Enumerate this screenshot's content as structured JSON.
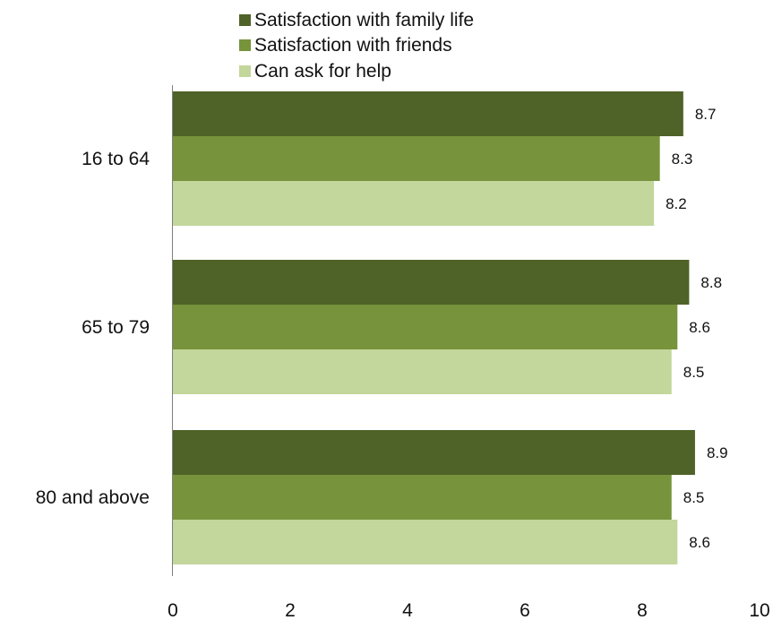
{
  "chart_data": {
    "type": "bar",
    "orientation": "horizontal",
    "categories": [
      "16 to 64",
      "65 to 79",
      "80 and above"
    ],
    "series": [
      {
        "name": "Satisfaction with family life",
        "color": "#4f6228",
        "values": [
          8.7,
          8.8,
          8.9
        ]
      },
      {
        "name": "Satisfaction with friends",
        "color": "#77933c",
        "values": [
          8.3,
          8.6,
          8.5
        ]
      },
      {
        "name": "Can ask for help",
        "color": "#c3d69b",
        "values": [
          8.2,
          8.5,
          8.6
        ]
      }
    ],
    "data_labels": [
      [
        "8.7",
        "8.8",
        "8.9"
      ],
      [
        "8.3",
        "8.6",
        "8.5"
      ],
      [
        "8.2",
        "8.5",
        "8.6"
      ]
    ],
    "xticks": [
      "0",
      "2",
      "4",
      "6",
      "8",
      "10"
    ],
    "xlim": [
      0,
      10
    ],
    "grid": false,
    "legend_position": "top"
  }
}
